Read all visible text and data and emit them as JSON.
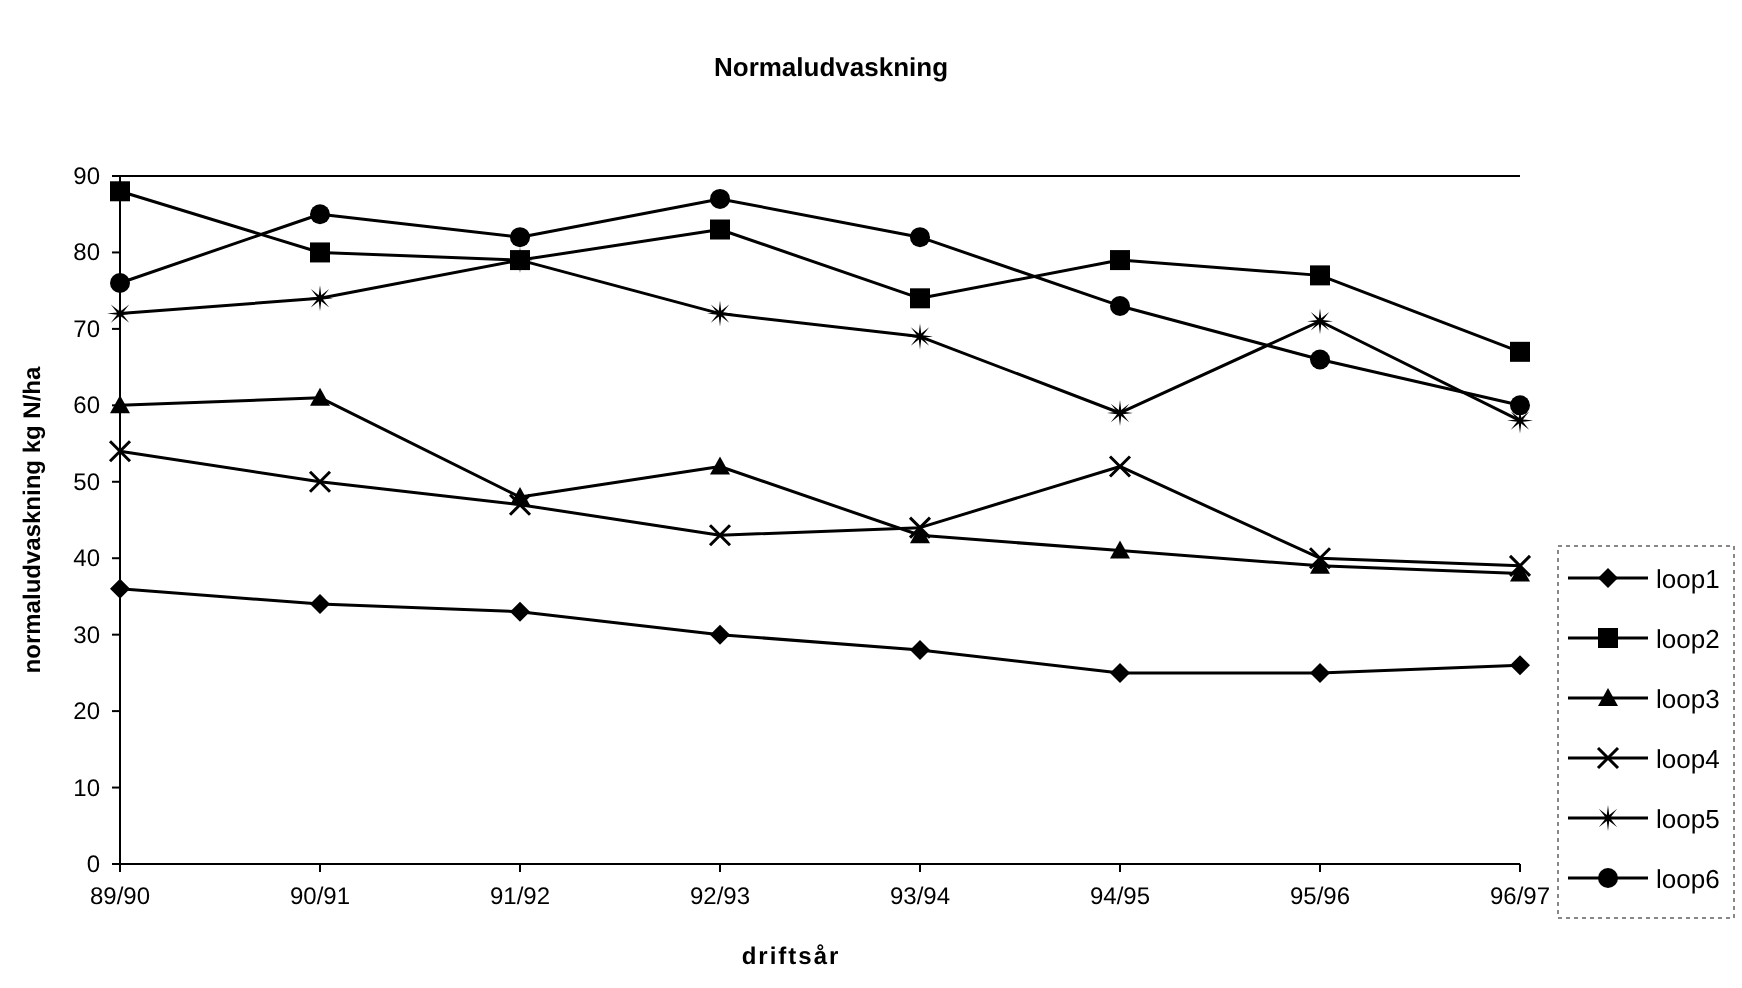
{
  "chart_data": {
    "type": "line",
    "title": "Normaludvaskning",
    "xlabel": "driftsår",
    "ylabel": "normaludvaskning kg N/ha",
    "categories": [
      "89/90",
      "90/91",
      "91/92",
      "92/93",
      "93/94",
      "94/95",
      "95/96",
      "96/97"
    ],
    "ylim": [
      0,
      90
    ],
    "yticks": [
      0,
      10,
      20,
      30,
      40,
      50,
      60,
      70,
      80,
      90
    ],
    "grid": false,
    "legend": "right",
    "line_style": "solid",
    "series": [
      {
        "name": "loop1",
        "color": "#000000",
        "marker": "diamond",
        "values": [
          36,
          34,
          33,
          30,
          28,
          25,
          25,
          26
        ]
      },
      {
        "name": "loop2",
        "color": "#000000",
        "marker": "square",
        "values": [
          88,
          80,
          79,
          83,
          74,
          79,
          77,
          67
        ]
      },
      {
        "name": "loop3",
        "color": "#000000",
        "marker": "triangle",
        "values": [
          60,
          61,
          48,
          52,
          43,
          41,
          39,
          38
        ]
      },
      {
        "name": "loop4",
        "color": "#000000",
        "marker": "cross",
        "values": [
          54,
          50,
          47,
          43,
          44,
          52,
          40,
          39
        ]
      },
      {
        "name": "loop5",
        "color": "#000000",
        "marker": "star",
        "values": [
          72,
          74,
          79,
          72,
          69,
          59,
          71,
          58
        ]
      },
      {
        "name": "loop6",
        "color": "#000000",
        "marker": "circle",
        "values": [
          76,
          85,
          82,
          87,
          82,
          73,
          66,
          60
        ]
      }
    ]
  }
}
